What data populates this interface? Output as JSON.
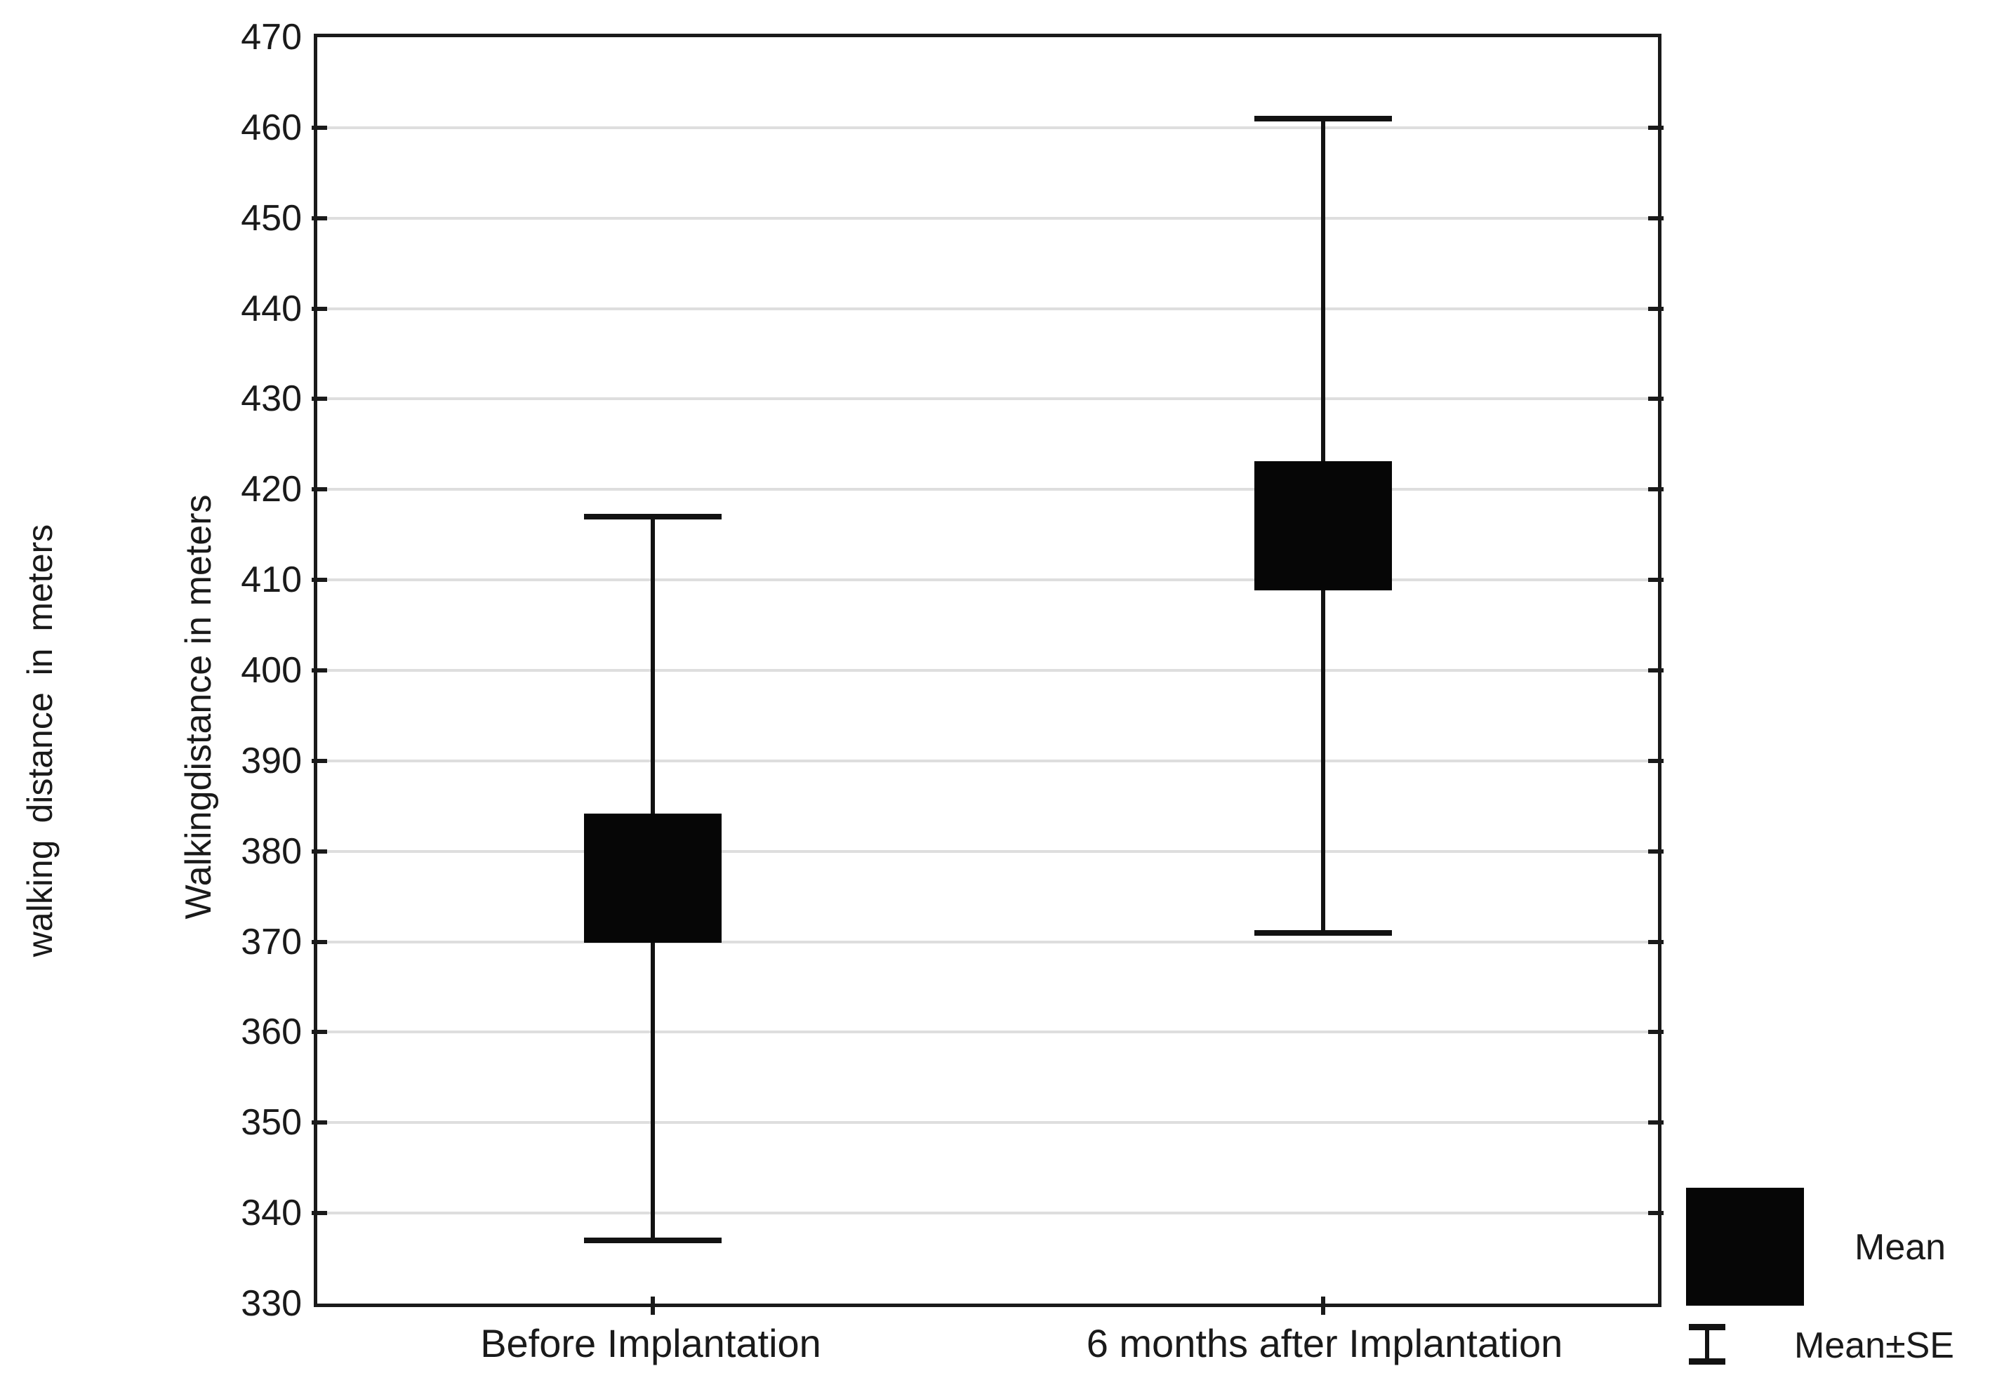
{
  "y_axis": {
    "title": "Walkingdistance in meters",
    "outer_title": "walking distance in meters",
    "tick_min": 330,
    "tick_max": 470,
    "tick_step": 10
  },
  "x_axis": {
    "categories": [
      "Before Implantation",
      "6 months after Implantation"
    ]
  },
  "legend": {
    "mean_label": "Mean",
    "mean_se_label": "Mean±SE"
  },
  "chart_data": {
    "type": "scatter",
    "variant": "mean-with-standard-error-whiskers",
    "title": "",
    "xlabel": "",
    "ylabel": "Walkingdistance in meters",
    "categories": [
      "Before Implantation",
      "6 months after Implantation"
    ],
    "series": [
      {
        "name": "Walking distance (m)",
        "means": [
          377,
          416
        ],
        "se": [
          40,
          45
        ],
        "mean_minus_se": [
          337,
          371
        ],
        "mean_plus_se": [
          417,
          461
        ]
      }
    ],
    "ylim": [
      330,
      470
    ],
    "ytick_step": 10,
    "grid": "horizontal-light-gray",
    "legend_entries": [
      "Mean",
      "Mean±SE"
    ],
    "legend_position": "bottom-right-outside",
    "marker": {
      "shape": "filled-square",
      "color": "#060606"
    }
  },
  "colors": {
    "foreground": "#1a1a1a",
    "gridline": "#dedede",
    "marker": "#060606",
    "background": "#ffffff"
  }
}
